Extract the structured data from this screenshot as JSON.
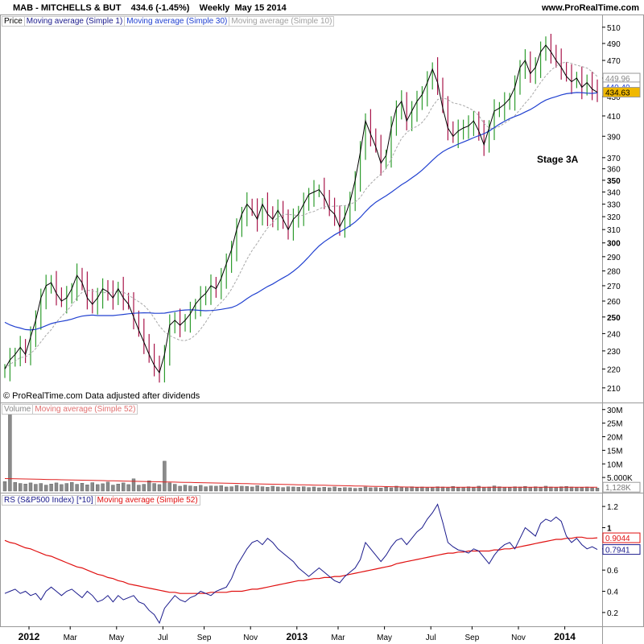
{
  "header": {
    "title": "MAB - MITCHELLS & BUT",
    "last": "434.6 (-1.45%)",
    "period": "Weekly",
    "date": "May 15 2014",
    "site": "www.ProRealTime.com"
  },
  "copyright": "© ProRealTime.com  Data adjusted after dividends",
  "annotation": "Stage 3A",
  "legends": {
    "price": [
      "Price",
      "Moving average (Simple 1)",
      "Moving average (Simple 30)",
      "Moving average (Simple 10)"
    ],
    "volume": [
      "Volume",
      "Moving average (Simple 52)"
    ],
    "rs": [
      "RS (S&P500 Index) [*10]",
      "Moving average (Simple 52)"
    ]
  },
  "colors": {
    "up": "#2e9c2e",
    "down": "#a8154a",
    "ma1": "#000000",
    "ma30": "#2040d0",
    "ma10": "#a8a8a8",
    "volume_bar": "#8a8a8a",
    "volume_ma": "#e02020",
    "rs_line": "#1a1a8c",
    "rs_ma": "#e01010",
    "last_price_bg": "#f0b800"
  },
  "chart_data": [
    {
      "type": "candlestick",
      "title": "MAB - MITCHELLS & BUT",
      "y_scale": "log",
      "ylim": [
        205,
        520
      ],
      "y_ticks": [
        210,
        220,
        230,
        240,
        250,
        260,
        270,
        280,
        290,
        300,
        310,
        320,
        330,
        340,
        350,
        360,
        370,
        390,
        410,
        430,
        450,
        470,
        490,
        510
      ],
      "y_ticks_bold": [
        250,
        300,
        350
      ],
      "x_ticks": [
        "2012",
        "Mar",
        "May",
        "Jul",
        "Sep",
        "Nov",
        "2013",
        "Mar",
        "May",
        "Jul",
        "Sep",
        "Nov",
        "2014",
        "Mar",
        "May"
      ],
      "x_ticks_bold": [
        "2012",
        "2013",
        "2014"
      ],
      "close": [
        220,
        225,
        228,
        232,
        228,
        238,
        248,
        262,
        270,
        272,
        265,
        260,
        262,
        268,
        277,
        272,
        262,
        258,
        262,
        268,
        266,
        262,
        268,
        262,
        258,
        250,
        242,
        235,
        228,
        222,
        218,
        228,
        245,
        248,
        245,
        248,
        252,
        258,
        262,
        265,
        270,
        268,
        275,
        285,
        295,
        310,
        322,
        330,
        325,
        318,
        330,
        322,
        318,
        325,
        318,
        310,
        318,
        322,
        330,
        338,
        340,
        342,
        336,
        326,
        322,
        312,
        320,
        332,
        350,
        375,
        405,
        392,
        380,
        365,
        372,
        398,
        418,
        425,
        405,
        415,
        425,
        432,
        445,
        460,
        445,
        418,
        398,
        390,
        395,
        398,
        400,
        405,
        395,
        382,
        398,
        415,
        418,
        422,
        428,
        440,
        462,
        470,
        455,
        462,
        480,
        488,
        480,
        470,
        462,
        452,
        446,
        450,
        440,
        445,
        438,
        434.6
      ],
      "ma30_end": 440.4,
      "ma10_end": 449.96,
      "last_price": 434.63,
      "axis_labels": {
        "last": "434.63",
        "ma30": "440.40",
        "ma10": "449.96"
      }
    },
    {
      "type": "bar",
      "title": "Volume",
      "y_ticks": [
        "5.000K",
        "10M",
        "15M",
        "20M",
        "25M",
        "30M"
      ],
      "last_label": "1,128K",
      "values_millions": [
        3.5,
        30,
        3.2,
        2.8,
        2.6,
        3.0,
        2.5,
        2.8,
        2.2,
        2.6,
        3.0,
        2.4,
        2.8,
        3.2,
        2.5,
        2.9,
        2.3,
        3.1,
        2.4,
        2.7,
        3.3,
        2.2,
        2.6,
        3.0,
        2.4,
        4.5,
        2.2,
        2.5,
        3.8,
        2.8,
        2.4,
        11,
        3.0,
        2.5,
        1.8,
        2.2,
        1.9,
        1.7,
        2.1,
        1.6,
        1.9,
        1.8,
        2.0,
        1.5,
        1.6,
        2.1,
        1.8,
        1.7,
        1.5,
        2.0,
        1.6,
        1.4,
        1.8,
        1.5,
        1.3,
        1.6,
        1.5,
        1.4,
        1.6,
        1.3,
        1.5,
        1.2,
        1.4,
        1.2,
        1.5,
        1.1,
        1.3,
        1.2,
        1.0,
        1.1,
        1.5,
        1.2,
        1.3,
        1.1,
        1.4,
        1.2,
        1.8,
        1.3,
        1.2,
        1.6,
        1.3,
        1.5,
        1.2,
        1.4,
        1.6,
        1.5,
        1.2,
        1.7,
        1.3,
        1.4,
        1.6,
        1.3,
        1.8,
        1.4,
        1.5,
        1.9,
        1.6,
        1.4,
        1.3,
        1.6,
        1.5,
        1.7,
        1.4,
        1.6,
        1.3,
        1.8,
        1.5,
        1.4,
        1.6,
        1.7,
        1.5,
        1.4,
        1.3,
        1.5,
        1.2,
        1.128
      ],
      "ma52_start": 4.6,
      "ma52_end": 1.4
    },
    {
      "type": "line",
      "title": "RS (S&P500 Index) [*10]",
      "ylim": [
        0.07,
        1.33
      ],
      "y_ticks": [
        0.2,
        0.4,
        0.6,
        0.8,
        1,
        1.2
      ],
      "y_ticks_bold": [
        1
      ],
      "rs": [
        0.38,
        0.4,
        0.42,
        0.38,
        0.4,
        0.36,
        0.38,
        0.32,
        0.4,
        0.44,
        0.4,
        0.36,
        0.4,
        0.42,
        0.38,
        0.34,
        0.4,
        0.36,
        0.3,
        0.32,
        0.36,
        0.3,
        0.36,
        0.32,
        0.34,
        0.36,
        0.3,
        0.28,
        0.22,
        0.18,
        0.1,
        0.24,
        0.3,
        0.36,
        0.32,
        0.3,
        0.34,
        0.36,
        0.4,
        0.38,
        0.36,
        0.4,
        0.42,
        0.44,
        0.52,
        0.64,
        0.72,
        0.8,
        0.86,
        0.88,
        0.84,
        0.9,
        0.86,
        0.8,
        0.76,
        0.72,
        0.68,
        0.62,
        0.58,
        0.54,
        0.58,
        0.62,
        0.58,
        0.54,
        0.5,
        0.48,
        0.54,
        0.58,
        0.62,
        0.7,
        0.86,
        0.8,
        0.74,
        0.68,
        0.74,
        0.82,
        0.88,
        0.9,
        0.84,
        0.9,
        0.96,
        1.0,
        1.08,
        1.14,
        1.22,
        1.05,
        0.86,
        0.82,
        0.79,
        0.78,
        0.76,
        0.8,
        0.78,
        0.72,
        0.66,
        0.74,
        0.8,
        0.84,
        0.86,
        0.8,
        0.9,
        1.0,
        0.96,
        0.92,
        1.04,
        1.08,
        1.06,
        1.1,
        1.06,
        0.92,
        0.86,
        0.9,
        0.84,
        0.8,
        0.82,
        0.7941
      ],
      "rs_ma52": [
        0.88,
        0.86,
        0.85,
        0.83,
        0.81,
        0.8,
        0.78,
        0.76,
        0.74,
        0.73,
        0.71,
        0.69,
        0.67,
        0.65,
        0.63,
        0.62,
        0.6,
        0.58,
        0.56,
        0.55,
        0.53,
        0.52,
        0.5,
        0.49,
        0.47,
        0.46,
        0.45,
        0.44,
        0.43,
        0.42,
        0.41,
        0.4,
        0.39,
        0.39,
        0.38,
        0.38,
        0.38,
        0.38,
        0.38,
        0.38,
        0.39,
        0.39,
        0.39,
        0.39,
        0.4,
        0.4,
        0.4,
        0.41,
        0.42,
        0.42,
        0.43,
        0.44,
        0.45,
        0.46,
        0.47,
        0.48,
        0.49,
        0.5,
        0.5,
        0.51,
        0.52,
        0.52,
        0.53,
        0.53,
        0.54,
        0.54,
        0.55,
        0.56,
        0.57,
        0.58,
        0.59,
        0.6,
        0.61,
        0.62,
        0.63,
        0.64,
        0.66,
        0.67,
        0.68,
        0.69,
        0.7,
        0.71,
        0.72,
        0.73,
        0.74,
        0.75,
        0.76,
        0.76,
        0.77,
        0.77,
        0.78,
        0.78,
        0.78,
        0.78,
        0.78,
        0.79,
        0.79,
        0.8,
        0.8,
        0.81,
        0.82,
        0.83,
        0.84,
        0.85,
        0.86,
        0.87,
        0.88,
        0.89,
        0.89,
        0.9,
        0.9,
        0.91,
        0.91,
        0.9,
        0.9,
        0.9044
      ],
      "axis_labels": {
        "ma": "0.9044",
        "rs": "0.7941"
      }
    }
  ]
}
